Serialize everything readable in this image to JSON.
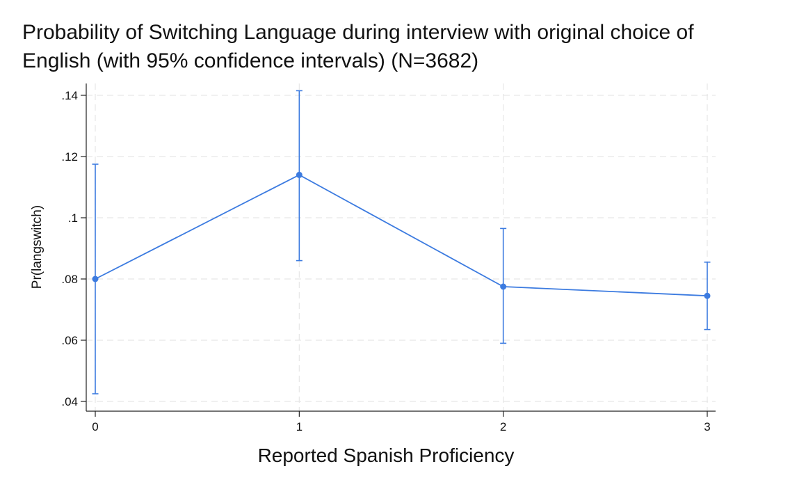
{
  "chart_data": {
    "type": "line",
    "title_lines": [
      "Probability of Switching Language during interview with original choice of",
      "English (with 95% confidence intervals) (N=3682)"
    ],
    "xlabel": "Reported Spanish Proficiency",
    "ylabel": "Pr(langswitch)",
    "x": [
      0,
      1,
      2,
      3
    ],
    "x_tick_labels": [
      "0",
      "1",
      "2",
      "3"
    ],
    "xlim": [
      0,
      3
    ],
    "ylim": [
      0.04,
      0.14
    ],
    "y_ticks": [
      0.04,
      0.06,
      0.08,
      0.1,
      0.12,
      0.14
    ],
    "y_tick_labels": [
      ".04",
      ".06",
      ".08",
      ".1",
      ".12",
      ".14"
    ],
    "grid": true,
    "series": [
      {
        "values": [
          0.08,
          0.114,
          0.0775,
          0.0745
        ],
        "ci_lower": [
          0.0425,
          0.086,
          0.059,
          0.0635
        ],
        "ci_upper": [
          0.1175,
          0.1415,
          0.0965,
          0.0855
        ],
        "color": "#3c7be0"
      }
    ]
  }
}
